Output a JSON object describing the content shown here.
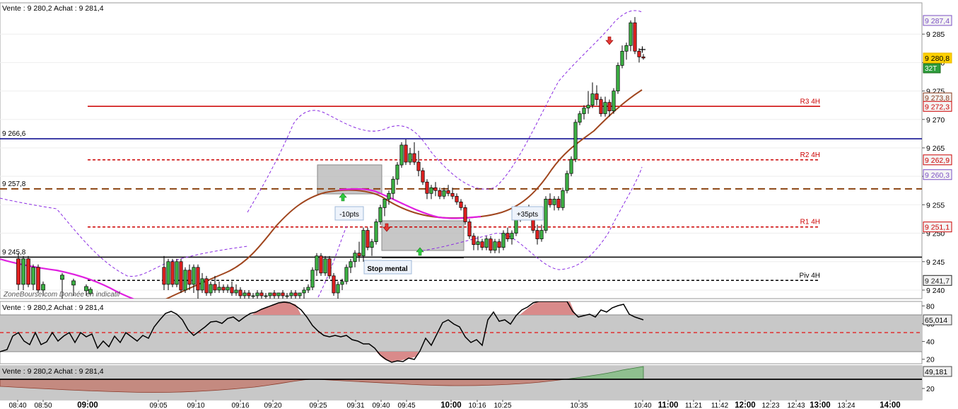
{
  "panels": {
    "main": {
      "header": "Vente : 9 280,2 Achat : 9 281,4",
      "watermark": "ZoneBourse.com  Donnée en indicatif"
    },
    "rsi": {
      "header": "Vente : 9 280,2 Achat : 9 281,4"
    },
    "osc": {
      "header": "Vente : 9 280,2 Achat : 9 281,4"
    }
  },
  "chart_data": [
    {
      "type": "candlestick",
      "y_ticks": [
        "9 285",
        "9 280",
        "9 275",
        "9 270",
        "9 265",
        "9 260",
        "9 255",
        "9 250",
        "9 245",
        "9 240"
      ],
      "ylim": [
        9238.5,
        9290.5
      ],
      "x_ticks": [
        "08:40",
        "08:50",
        "09:00",
        "09:05",
        "09:10",
        "09:16",
        "09:20",
        "09:25",
        "09:31",
        "09:40",
        "09:45",
        "10:00",
        "10:16",
        "10:25",
        "10:35",
        "10:40",
        "11:00",
        "11:21",
        "11:42",
        "12:00",
        "12:23",
        "12:43",
        "13:00",
        "13:24",
        "14:00"
      ],
      "price_badges": [
        {
          "label": "9 287,4",
          "color": "#7b4fc4"
        },
        {
          "label": "9 280,8",
          "color": "#e8b800",
          "tag": "32T"
        },
        {
          "label": "9 273,8",
          "color": "#8b3a1a"
        },
        {
          "label": "9 272,3",
          "color": "#cc0000"
        },
        {
          "label": "9 262,9",
          "color": "#cc0000"
        },
        {
          "label": "9 260,3",
          "color": "#7b4fc4"
        },
        {
          "label": "9 251,1",
          "color": "#cc0000"
        },
        {
          "label": "9 241,7",
          "color": "#222222"
        }
      ],
      "horizontal_levels": [
        {
          "value": 9272.3,
          "label": "R3 4H",
          "style": "solid",
          "color": "#cc0000"
        },
        {
          "value": 9266.6,
          "label": "9 266,6",
          "style": "solid",
          "color": "#00008b"
        },
        {
          "value": 9262.9,
          "label": "R2 4H",
          "style": "dashed",
          "color": "#cc0000"
        },
        {
          "value": 9257.8,
          "label": "9 257,8",
          "style": "dashed",
          "color": "#8b4513"
        },
        {
          "value": 9251.1,
          "label": "R1 4H",
          "style": "dashed",
          "color": "#cc0000"
        },
        {
          "value": 9245.8,
          "label": "9 245,8",
          "style": "solid",
          "color": "#000000"
        },
        {
          "value": 9241.7,
          "label": "Piv 4H",
          "style": "dashed",
          "color": "#000000"
        }
      ],
      "annotations": [
        "-10pts",
        "+35pts",
        "Stop mental"
      ],
      "candles": [
        [
          9244.0,
          9246.0,
          9240.0,
          9241.0
        ],
        [
          9241.0,
          9245.5,
          9240.0,
          9245.0
        ],
        [
          9245.0,
          9245.5,
          9240.5,
          9241.0
        ],
        [
          9241.0,
          9245.5,
          9240.5,
          9245.0
        ],
        [
          9245.0,
          9245.5,
          9239.5,
          9240.0
        ],
        [
          9240.0,
          9244.0,
          9239.5,
          9243.5
        ],
        [
          9243.5,
          9244.5,
          9240.0,
          9241.0
        ],
        [
          9241.0,
          9244.5,
          9239.5,
          9244.0
        ],
        [
          9244.0,
          9244.5,
          9238.5,
          9240.0
        ],
        [
          9240.0,
          9243.0,
          9239.5,
          9242.0
        ],
        [
          9242.0,
          9242.5,
          9239.0,
          9239.5
        ],
        [
          9239.5,
          9241.5,
          9239.0,
          9241.0
        ],
        [
          9241.0,
          9242.5,
          9239.5,
          9240.0
        ],
        [
          9240.0,
          9241.5,
          9239.5,
          9240.5
        ],
        [
          9240.5,
          9241.0,
          9239.5,
          9240.0
        ],
        [
          9240.0,
          9241.0,
          9239.5,
          9240.5
        ],
        [
          9240.5,
          9241.5,
          9239.0,
          9239.5
        ],
        [
          9239.5,
          9241.0,
          9239.0,
          9240.0
        ],
        [
          9240.0,
          9240.5,
          9238.5,
          9239.0
        ],
        [
          9239.0,
          9240.0,
          9238.5,
          9239.5
        ],
        [
          9239.5,
          9240.0,
          9238.5,
          9239.0
        ],
        [
          9239.0,
          9239.5,
          9238.5,
          9239.0
        ],
        [
          9239.0,
          9240.0,
          9238.5,
          9239.5
        ],
        [
          9239.5,
          9240.0,
          9238.5,
          9239.0
        ],
        [
          9239.0,
          9239.5,
          9238.5,
          9239.0
        ],
        [
          9239.0,
          9239.5,
          9238.5,
          9239.5
        ],
        [
          9239.5,
          9240.0,
          9238.5,
          9239.0
        ],
        [
          9239.0,
          9239.5,
          9238.5,
          9239.5
        ],
        [
          9239.5,
          9240.0,
          9238.5,
          9239.0
        ],
        [
          9239.0,
          9239.5,
          9238.5,
          9239.0
        ],
        [
          9239.0,
          9240.0,
          9238.5,
          9239.5
        ],
        [
          9239.5,
          9240.0,
          9238.5,
          9239.0
        ],
        [
          9239.0,
          9239.5,
          9238.5,
          9239.5
        ],
        [
          9239.5,
          9240.5,
          9238.5,
          9240.0
        ],
        [
          9240.0,
          9241.0,
          9239.5,
          9240.5
        ],
        [
          9240.5,
          9244.0,
          9240.0,
          9243.5
        ],
        [
          9243.5,
          9246.5,
          9242.5,
          9246.0
        ],
        [
          9246.0,
          9246.5,
          9242.5,
          9243.0
        ],
        [
          9243.0,
          9246.0,
          9242.5,
          9245.5
        ],
        [
          9245.5,
          9246.0,
          9242.0,
          9242.5
        ],
        [
          9242.5,
          9243.0,
          9239.0,
          9239.5
        ],
        [
          9239.5,
          9241.5,
          9238.5,
          9241.0
        ],
        [
          9241.0,
          9242.0,
          9240.0,
          9241.5
        ],
        [
          9241.5,
          9244.5,
          9241.0,
          9244.0
        ],
        [
          9244.0,
          9245.5,
          9243.0,
          9245.0
        ],
        [
          9245.0,
          9247.0,
          9244.0,
          9246.5
        ],
        [
          9246.5,
          9248.5,
          9245.0,
          9246.0
        ],
        [
          9246.0,
          9251.0,
          9245.0,
          9250.5
        ],
        [
          9250.5,
          9251.0,
          9247.0,
          9247.5
        ],
        [
          9247.5,
          9249.0,
          9246.0,
          9248.5
        ],
        [
          9248.5,
          9252.5,
          9248.0,
          9252.0
        ],
        [
          9252.0,
          9255.0,
          9251.5,
          9254.5
        ],
        [
          9254.5,
          9256.0,
          9253.0,
          9256.0
        ],
        [
          9256.0,
          9257.5,
          9255.0,
          9257.0
        ],
        [
          9257.0,
          9260.0,
          9256.0,
          9259.5
        ],
        [
          9259.5,
          9262.5,
          9258.5,
          9262.0
        ],
        [
          9262.0,
          9266.0,
          9261.5,
          9265.5
        ],
        [
          9265.5,
          9266.5,
          9262.0,
          9262.5
        ],
        [
          9262.5,
          9265.0,
          9262.0,
          9264.0
        ],
        [
          9264.0,
          9266.0,
          9262.0,
          9262.5
        ],
        [
          9262.5,
          9264.5,
          9260.0,
          9261.0
        ],
        [
          9261.0,
          9261.5,
          9258.5,
          9259.0
        ],
        [
          9259.0,
          9259.5,
          9256.0,
          9257.0
        ],
        [
          9257.0,
          9258.5,
          9256.0,
          9258.0
        ],
        [
          9258.0,
          9259.0,
          9256.5,
          9257.5
        ],
        [
          9257.5,
          9258.0,
          9256.0,
          9256.5
        ],
        [
          9256.5,
          9258.0,
          9256.0,
          9257.5
        ],
        [
          9257.5,
          9258.5,
          9256.5,
          9257.0
        ],
        [
          9257.0,
          9258.0,
          9256.0,
          9256.5
        ],
        [
          9256.5,
          9257.0,
          9255.0,
          9255.5
        ],
        [
          9255.5,
          9256.0,
          9254.0,
          9254.5
        ],
        [
          9254.5,
          9255.0,
          9251.5,
          9252.0
        ],
        [
          9252.0,
          9252.5,
          9249.0,
          9249.5
        ],
        [
          9249.5,
          9250.0,
          9247.0,
          9248.0
        ],
        [
          9248.0,
          9249.5,
          9247.0,
          9248.5
        ],
        [
          9248.5,
          9249.0,
          9247.0,
          9247.5
        ],
        [
          9247.5,
          9249.5,
          9247.0,
          9249.0
        ],
        [
          9249.0,
          9249.5,
          9246.5,
          9247.0
        ],
        [
          9247.0,
          9249.0,
          9246.5,
          9248.5
        ],
        [
          9248.5,
          9249.0,
          9246.5,
          9247.5
        ],
        [
          9247.5,
          9250.5,
          9247.0,
          9250.0
        ],
        [
          9250.0,
          9251.0,
          9248.5,
          9249.0
        ],
        [
          9249.0,
          9250.5,
          9248.0,
          9250.0
        ],
        [
          9250.0,
          9254.5,
          9249.5,
          9254.0
        ],
        [
          9254.0,
          9254.5,
          9252.0,
          9253.0
        ],
        [
          9253.0,
          9254.0,
          9252.5,
          9253.5
        ],
        [
          9253.5,
          9255.0,
          9252.5,
          9253.0
        ],
        [
          9253.0,
          9253.5,
          9250.0,
          9250.5
        ],
        [
          9250.5,
          9251.5,
          9248.0,
          9249.0
        ],
        [
          9249.0,
          9251.5,
          9248.5,
          9250.5
        ],
        [
          9250.5,
          9256.5,
          9250.0,
          9256.0
        ],
        [
          9256.0,
          9257.0,
          9254.5,
          9255.0
        ],
        [
          9255.0,
          9256.5,
          9254.0,
          9256.0
        ],
        [
          9256.0,
          9256.5,
          9254.0,
          9254.5
        ],
        [
          9254.5,
          9258.0,
          9254.0,
          9257.5
        ],
        [
          9257.5,
          9261.0,
          9257.0,
          9260.5
        ],
        [
          9260.5,
          9263.5,
          9260.0,
          9263.0
        ],
        [
          9263.0,
          9270.0,
          9262.5,
          9269.5
        ],
        [
          9269.5,
          9271.5,
          9269.0,
          9271.0
        ],
        [
          9271.0,
          9272.5,
          9270.0,
          9272.0
        ],
        [
          9272.0,
          9275.0,
          9271.0,
          9272.5
        ],
        [
          9272.5,
          9276.5,
          9272.0,
          9274.5
        ],
        [
          9274.5,
          9276.0,
          9272.5,
          9273.5
        ],
        [
          9273.5,
          9274.0,
          9270.5,
          9271.0
        ],
        [
          9271.0,
          9274.0,
          9270.5,
          9273.0
        ],
        [
          9273.0,
          9273.5,
          9270.5,
          9271.5
        ],
        [
          9271.5,
          9275.5,
          9271.0,
          9275.0
        ],
        [
          9275.0,
          9280.0,
          9274.5,
          9279.5
        ],
        [
          9279.5,
          9283.0,
          9279.0,
          9282.0
        ],
        [
          9282.0,
          9283.5,
          9280.5,
          9283.0
        ],
        [
          9283.0,
          9287.4,
          9282.0,
          9287.0
        ],
        [
          9287.0,
          9288.0,
          9281.5,
          9282.0
        ],
        [
          9282.0,
          9282.5,
          9280.0,
          9281.0
        ],
        [
          9281.0,
          9281.5,
          9280.5,
          9280.8
        ]
      ]
    },
    {
      "type": "line",
      "y_ticks": [
        "80",
        "60",
        "40",
        "20"
      ],
      "ylim": [
        15,
        85
      ],
      "badge": "65,014",
      "levels": [
        70,
        30
      ],
      "dashed_level": 50
    },
    {
      "type": "area",
      "y_ticks": [
        "20"
      ],
      "badge": "49,181"
    }
  ]
}
